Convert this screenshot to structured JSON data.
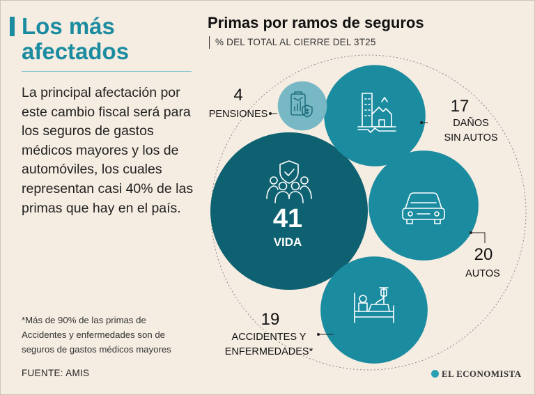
{
  "left": {
    "headline": "Los más afectados",
    "body": "La principal afectación por este cambio fiscal será para los seguros de gastos médicos mayores y los de automóviles, los cuales representan casi 40% de las primas que hay en el país.",
    "footnote": "*Más de 90% de las primas de Accidentes y enfermedades son de seguros de gastos médicos mayores",
    "source": "FUENTE: AMIS"
  },
  "brand": "EL ECONOMISTA",
  "colors": {
    "background": "#f5ece2",
    "accent": "#1b8ca0",
    "vida": "#0e6170",
    "other": "#1b8ca0",
    "pensiones": "#78b8c4"
  },
  "chart_data": {
    "type": "bubble",
    "title": "Primas por ramos de seguros",
    "subtitle": "% DEL TOTAL AL CIERRE DEL 3T25",
    "unit": "%",
    "items": [
      {
        "key": "vida",
        "value": 41,
        "label_lines": [
          "VIDA"
        ],
        "icon": "life-insurance-icon"
      },
      {
        "key": "danos",
        "value": 17,
        "label_lines": [
          "DAÑOS",
          "SIN AUTOS"
        ],
        "icon": "damaged-building-icon"
      },
      {
        "key": "autos",
        "value": 20,
        "label_lines": [
          "AUTOS"
        ],
        "icon": "car-icon"
      },
      {
        "key": "accidentes",
        "value": 19,
        "label_lines": [
          "ACCIDENTES Y",
          "ENFERMEDADES*"
        ],
        "icon": "hospital-bed-icon"
      },
      {
        "key": "pensiones",
        "value": 4,
        "label_lines": [
          "PENSIONES"
        ],
        "icon": "pension-document-icon"
      }
    ]
  }
}
